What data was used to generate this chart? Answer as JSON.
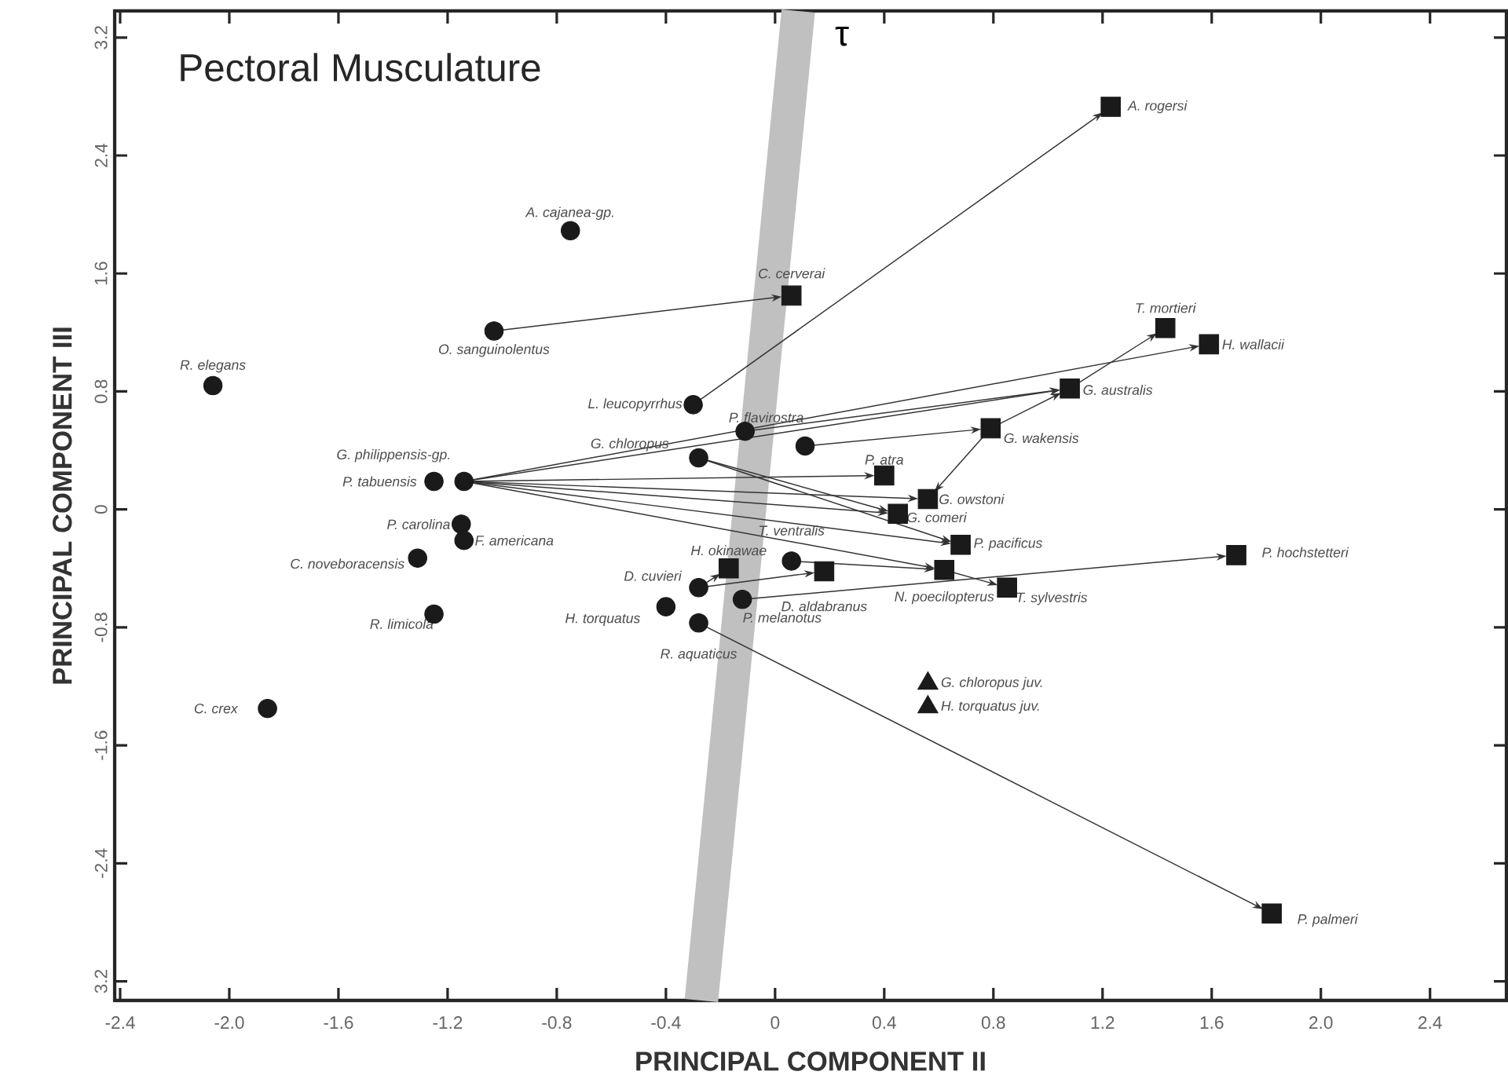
{
  "chart_data": {
    "type": "scatter",
    "title": "Pectoral Musculature",
    "xlabel": "PRINCIPAL COMPONENT II",
    "ylabel": "PRINCIPAL COMPONENT III",
    "xlim": [
      -2.42,
      2.68
    ],
    "ylim": [
      -3.33,
      3.38
    ],
    "xticks": [
      -2.4,
      {
        "value": -2.0,
        "label": "-2.0"
      },
      -1.6,
      -1.2,
      -0.8,
      -0.4,
      0,
      0.4,
      0.8,
      1.2,
      1.6,
      {
        "value": 2.0,
        "label": "2.0"
      },
      2.4
    ],
    "yticks": [
      {
        "value": -3.2,
        "label": "3.2"
      },
      -2.4,
      -1.6,
      -0.8,
      0,
      0.8,
      1.6,
      2.4,
      3.2
    ],
    "grid": false,
    "series": [
      {
        "name": "τ",
        "type": "line",
        "color": "#c0c0c0",
        "x": [
          0.085,
          -0.27
        ],
        "values": [
          3.38,
          -3.33
        ]
      },
      {
        "type": "scatter",
        "marker": "circle",
        "color": "#1a1a1a",
        "x": [
          -0.75,
          -1.03,
          -2.06,
          -0.3,
          -0.11,
          -0.28,
          -1.14,
          -1.25,
          -1.15,
          -1.14,
          -1.31,
          -1.25,
          -1.86,
          -0.28,
          -0.4,
          -0.28,
          -0.12,
          0.06,
          0.11
        ],
        "values": [
          1.89,
          1.21,
          0.84,
          0.71,
          0.53,
          0.35,
          0.19,
          0.19,
          -0.1,
          -0.21,
          -0.33,
          -0.71,
          -1.35,
          -0.53,
          -0.66,
          -0.77,
          -0.61,
          -0.35,
          0.43
        ]
      },
      {
        "type": "scatter",
        "marker": "square",
        "color": "#1a1a1a",
        "x": [
          1.23,
          0.06,
          1.43,
          1.59,
          1.08,
          0.79,
          0.4,
          0.56,
          0.45,
          0.68,
          1.69,
          0.62,
          0.85,
          0.18,
          -0.17,
          1.82
        ],
        "values": [
          2.73,
          1.45,
          1.23,
          1.12,
          0.82,
          0.55,
          0.23,
          0.07,
          -0.03,
          -0.24,
          -0.31,
          -0.41,
          -0.53,
          -0.42,
          -0.4,
          -2.74
        ]
      },
      {
        "type": "scatter",
        "marker": "triangle",
        "color": "#1a1a1a",
        "x": [
          0.56,
          0.56
        ],
        "values": [
          -1.18,
          -1.34
        ]
      }
    ],
    "annotations": [
      {
        "text": "A. cajanea-gp.",
        "x": -0.75,
        "y": 1.89
      },
      {
        "text": "O. sanguinolentus",
        "x": -1.03,
        "y": 1.21
      },
      {
        "text": "R. elegans",
        "x": -2.06,
        "y": 0.84
      },
      {
        "text": "L. leucopyrrhus",
        "x": -0.3,
        "y": 0.71
      },
      {
        "text": "P. flavirostra",
        "x": -0.11,
        "y": 0.53
      },
      {
        "text": "G. chloropus",
        "x": -0.28,
        "y": 0.35
      },
      {
        "text": "G. philippensis-gp.",
        "x": -1.14,
        "y": 0.19
      },
      {
        "text": "P. tabuensis",
        "x": -1.25,
        "y": 0.19
      },
      {
        "text": "P. carolina",
        "x": -1.15,
        "y": -0.1
      },
      {
        "text": "F. americana",
        "x": -1.14,
        "y": -0.21
      },
      {
        "text": "C. noveboracensis",
        "x": -1.31,
        "y": -0.33
      },
      {
        "text": "R. limicola",
        "x": -1.25,
        "y": -0.71
      },
      {
        "text": "C. crex",
        "x": -1.86,
        "y": -1.35
      },
      {
        "text": "D. cuvieri",
        "x": -0.28,
        "y": -0.53
      },
      {
        "text": "H. torquatus",
        "x": -0.4,
        "y": -0.66
      },
      {
        "text": "R. aquaticus",
        "x": -0.28,
        "y": -0.77
      },
      {
        "text": "P. melanotus",
        "x": -0.12,
        "y": -0.61
      },
      {
        "text": "T. ventralis",
        "x": 0.06,
        "y": -0.35
      },
      {
        "text": "A. rogersi",
        "x": 1.23,
        "y": 2.73
      },
      {
        "text": "C. cerverai",
        "x": 0.06,
        "y": 1.45
      },
      {
        "text": "T. mortieri",
        "x": 1.43,
        "y": 1.23
      },
      {
        "text": "H. wallacii",
        "x": 1.59,
        "y": 1.12
      },
      {
        "text": "G. australis",
        "x": 1.08,
        "y": 0.82
      },
      {
        "text": "G. wakensis",
        "x": 0.79,
        "y": 0.55
      },
      {
        "text": "P. atra",
        "x": 0.4,
        "y": 0.23
      },
      {
        "text": "G. owstoni",
        "x": 0.56,
        "y": 0.07
      },
      {
        "text": "G. comeri",
        "x": 0.45,
        "y": -0.03
      },
      {
        "text": "P. pacificus",
        "x": 0.68,
        "y": -0.24
      },
      {
        "text": "P. hochstetteri",
        "x": 1.69,
        "y": -0.31
      },
      {
        "text": "N. poecilopterus",
        "x": 0.62,
        "y": -0.41
      },
      {
        "text": "T. sylvestris",
        "x": 0.85,
        "y": -0.53
      },
      {
        "text": "D. aldabranus",
        "x": 0.18,
        "y": -0.42
      },
      {
        "text": "H. okinawae",
        "x": -0.17,
        "y": -0.4
      },
      {
        "text": "P. palmeri",
        "x": 1.82,
        "y": -2.74
      },
      {
        "text": "G. chloropus juv.",
        "x": 0.56,
        "y": -1.18
      },
      {
        "text": "H. torquatus juv.",
        "x": 0.56,
        "y": -1.34
      }
    ]
  }
}
